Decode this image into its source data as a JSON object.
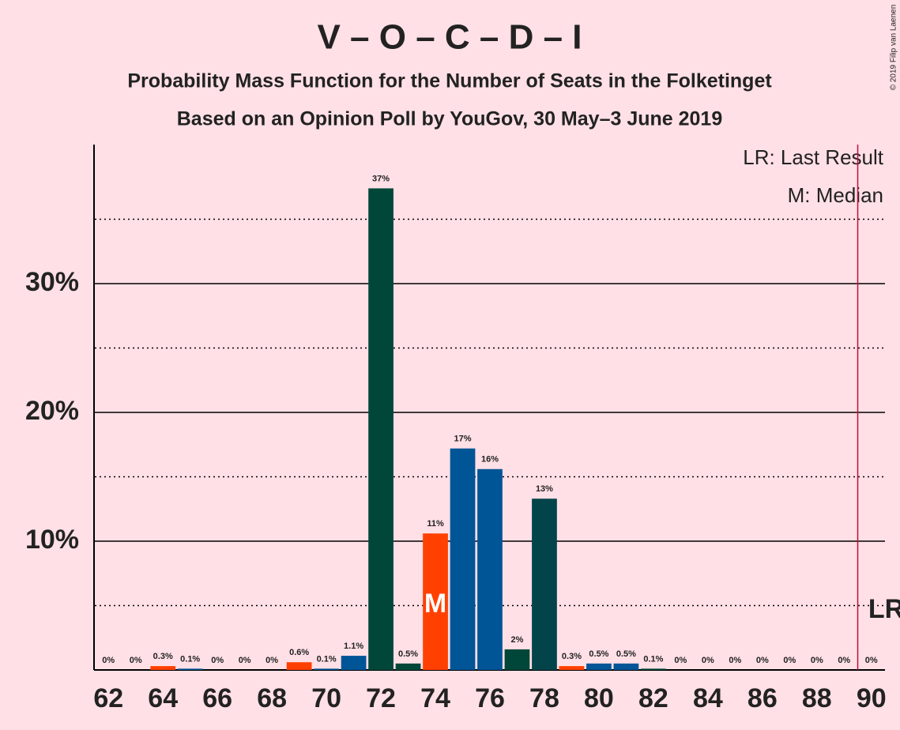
{
  "chart_data": {
    "type": "bar",
    "title": "V – O – C – D – I",
    "subtitle": "Probability Mass Function for the Number of Seats in the Folketinget",
    "subtitle2": "Based on an Opinion Poll by YouGov, 30 May–3 June 2019",
    "copyright": "© 2019 Filip van Laenen",
    "legend_last_result": "LR: Last Result",
    "legend_median": "M: Median",
    "last_result_marker": "LR",
    "median_marker": "M",
    "last_result": 90,
    "median": 74,
    "x": [
      62,
      63,
      64,
      65,
      66,
      67,
      68,
      69,
      70,
      71,
      72,
      73,
      74,
      75,
      76,
      77,
      78,
      79,
      80,
      81,
      82,
      83,
      84,
      85,
      86,
      87,
      88,
      89,
      90
    ],
    "xticks": [
      62,
      64,
      66,
      68,
      70,
      72,
      74,
      76,
      78,
      80,
      82,
      84,
      86,
      88,
      90
    ],
    "values": [
      0,
      0,
      0.3,
      0.1,
      0,
      0,
      0,
      0.6,
      0.1,
      1.1,
      37.4,
      0.5,
      10.6,
      17.2,
      15.6,
      1.6,
      13.3,
      0.3,
      0.5,
      0.5,
      0.1,
      0,
      0,
      0,
      0,
      0,
      0,
      0,
      0
    ],
    "value_labels": [
      "0%",
      "0%",
      "0.3%",
      "0.1%",
      "0%",
      "0%",
      "0%",
      "0.6%",
      "0.1%",
      "1.1%",
      "37%",
      "0.5%",
      "11%",
      "17%",
      "16%",
      "2%",
      "13%",
      "0.3%",
      "0.5%",
      "0.5%",
      "0.1%",
      "0%",
      "0%",
      "0%",
      "0%",
      "0%",
      "0%",
      "0%",
      "0%"
    ],
    "colors": [
      "#ff4000",
      "#ff4000",
      "#ff4000",
      "#005596",
      "#005596",
      "#00473a",
      "#00473a",
      "#ff4000",
      "#005596",
      "#005596",
      "#00473a",
      "#00473a",
      "#ff4000",
      "#005596",
      "#005596",
      "#00473a",
      "#03434a",
      "#ff4000",
      "#005596",
      "#005596",
      "#00473a",
      "#00473a",
      "#ff4000",
      "#005596",
      "#005596",
      "#00473a",
      "#00473a",
      "#ff4000",
      "#005596"
    ],
    "xlim": [
      61.5,
      90.5
    ],
    "ylim": [
      0,
      40.8
    ],
    "yticks": [
      {
        "value": 10,
        "label": "10%"
      },
      {
        "value": 20,
        "label": "20%"
      },
      {
        "value": 30,
        "label": "30%"
      }
    ],
    "minor_yticks": [
      5,
      15,
      25,
      35
    ],
    "grid": true
  }
}
